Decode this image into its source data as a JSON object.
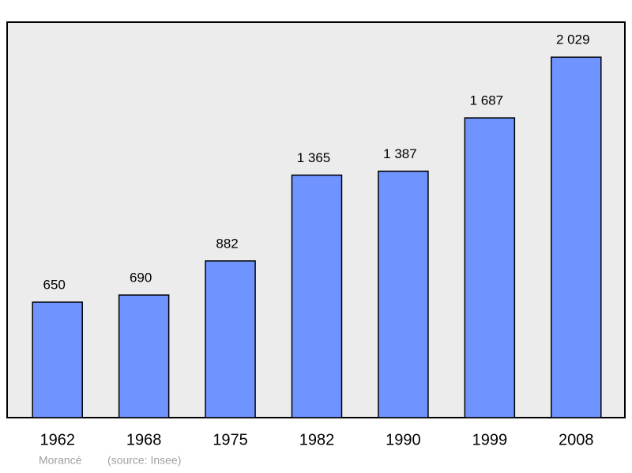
{
  "chart_data": {
    "type": "bar",
    "categories": [
      "1962",
      "1968",
      "1975",
      "1982",
      "1990",
      "1999",
      "2008"
    ],
    "values": [
      650,
      690,
      882,
      1365,
      1387,
      1687,
      2029
    ],
    "value_labels": [
      "650",
      "690",
      "882",
      "1 365",
      "1 387",
      "1 687",
      "2 029"
    ],
    "color": "#7094ff",
    "ylim": [
      0,
      2226
    ],
    "place": "Morancé",
    "source": "(source: Insee)"
  }
}
